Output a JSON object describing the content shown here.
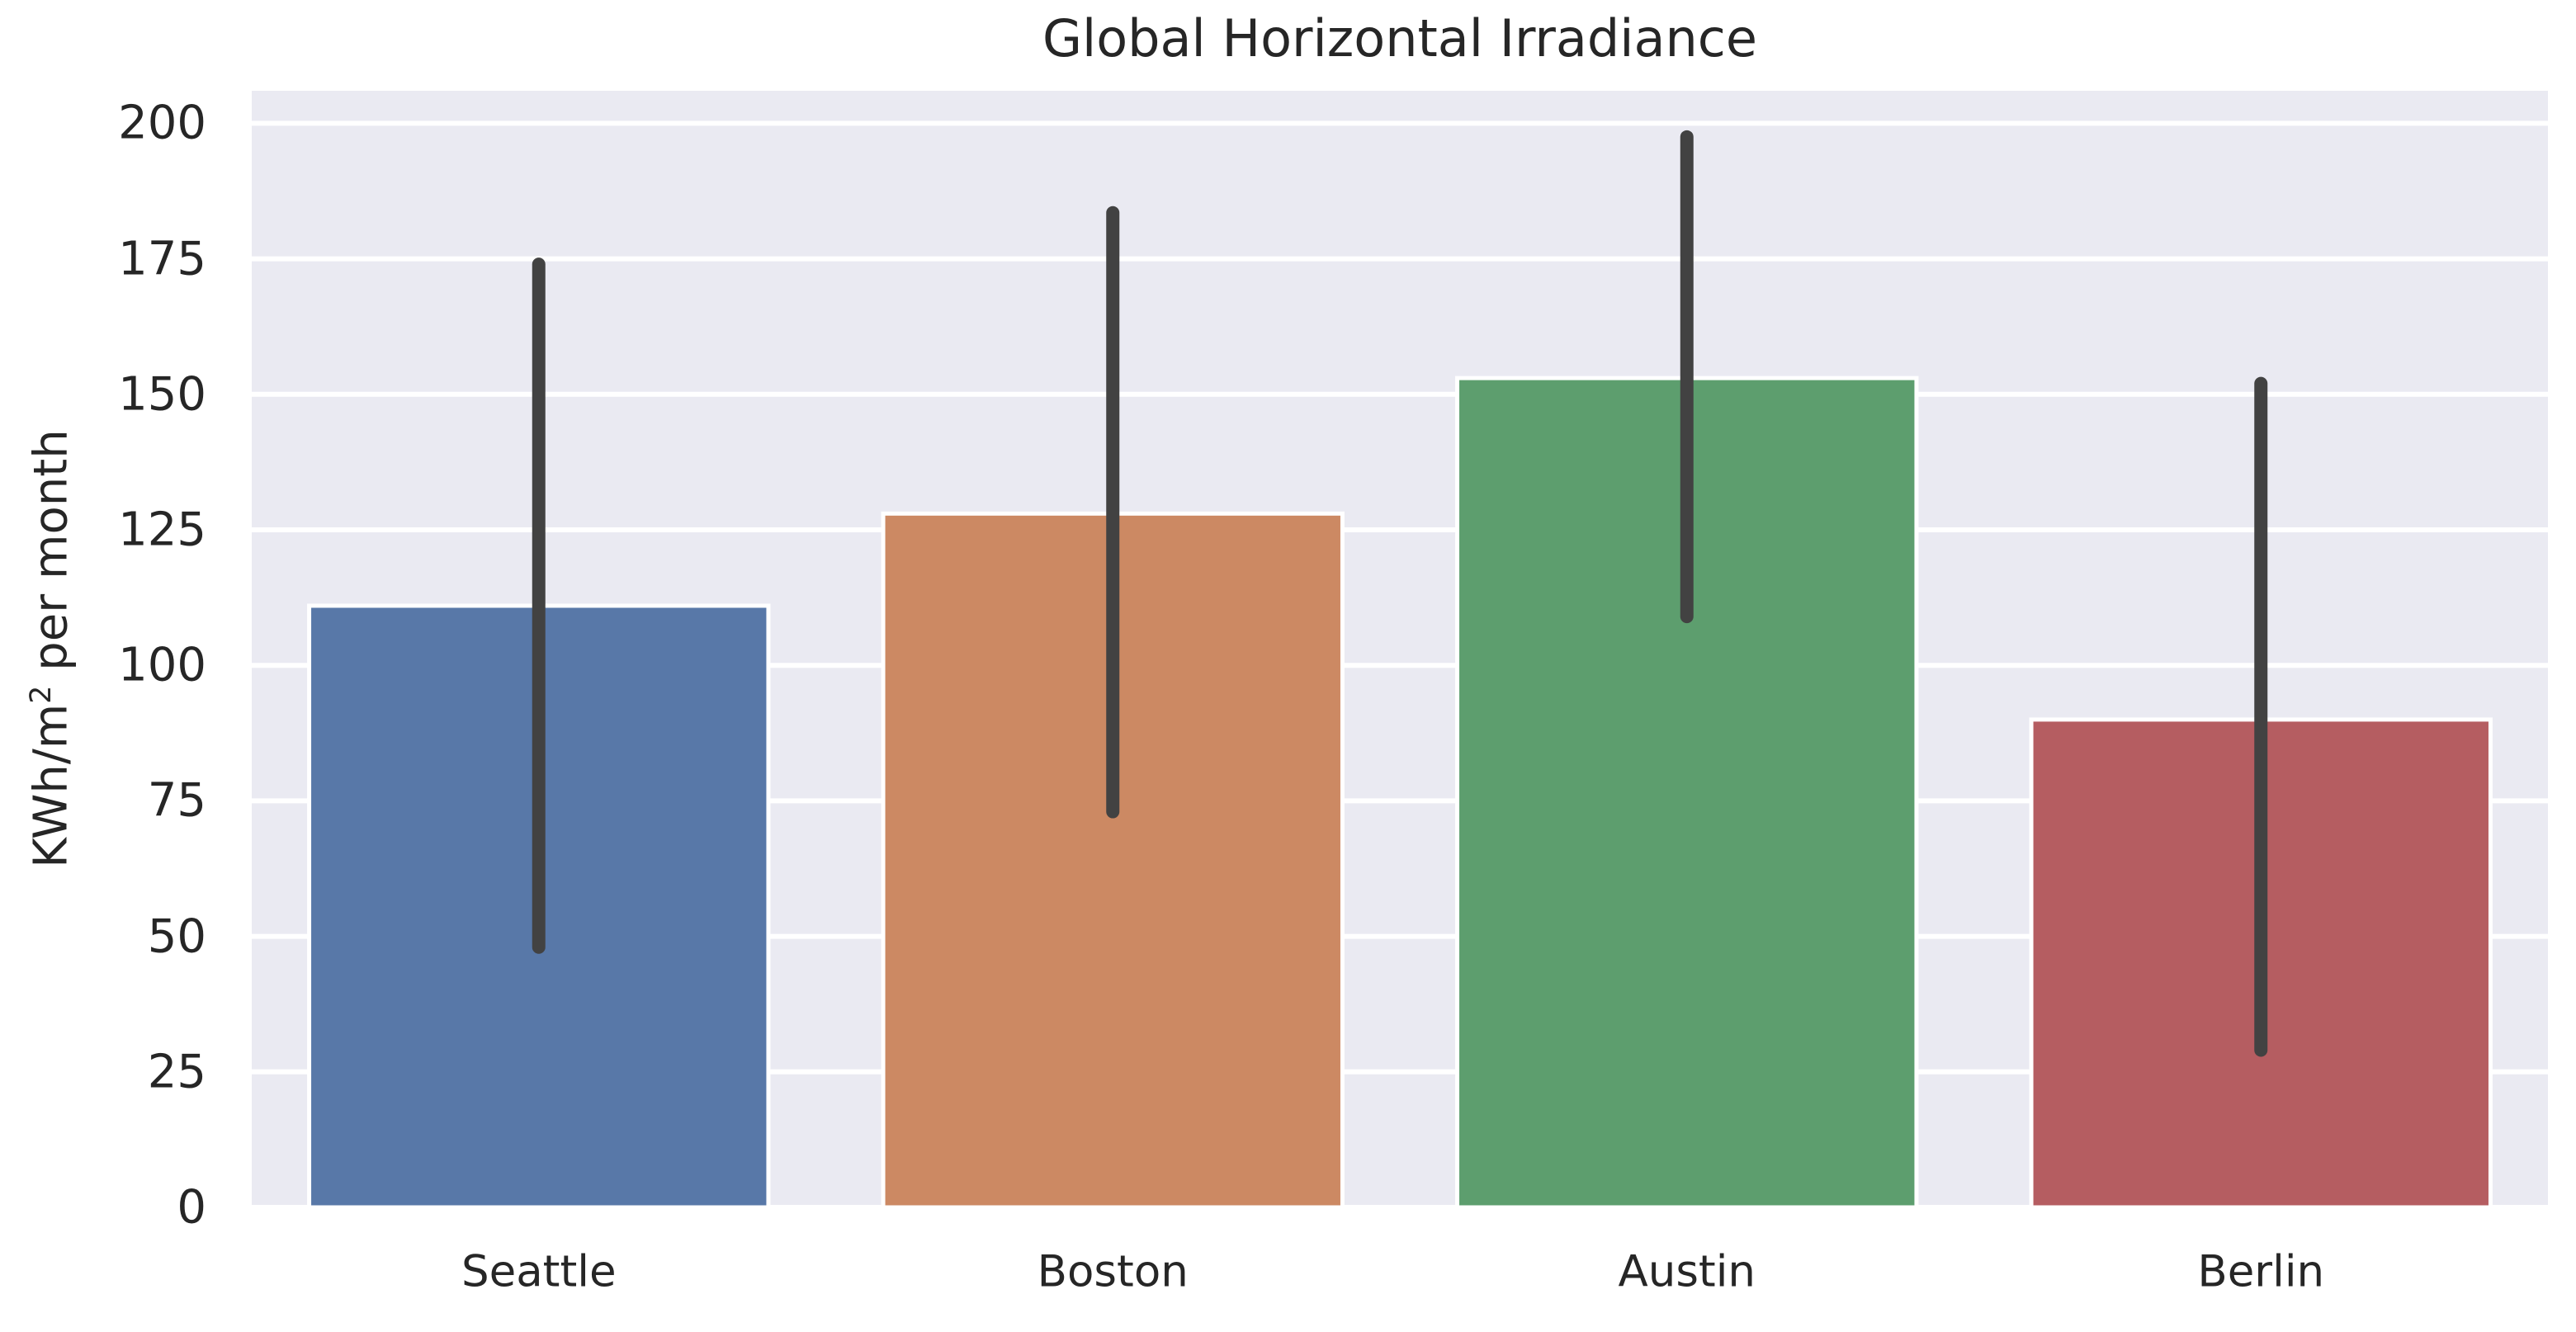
{
  "title": "Global Horizontal Irradiance",
  "y_axis": {
    "label_prefix": "KWh/m",
    "label_sup": "2",
    "label_suffix": " per month",
    "ticks": [
      0,
      25,
      50,
      75,
      100,
      125,
      150,
      175,
      200
    ]
  },
  "chart_data": {
    "type": "bar",
    "title": "Global Horizontal Irradiance",
    "xlabel": "",
    "ylabel": "KWh/m2 per month",
    "categories": [
      "Seattle",
      "Boston",
      "Austin",
      "Berlin"
    ],
    "values": [
      111,
      128,
      153,
      90
    ],
    "error_low": [
      48,
      73,
      109,
      29
    ],
    "error_high": [
      174,
      183.5,
      197.5,
      152
    ],
    "ylim": [
      0,
      206
    ],
    "ytick_step": 25,
    "grid": "horizontal white gridlines on",
    "legend_position": "none",
    "bar_colors": [
      "#5878a8",
      "#cc8963",
      "#5d9e6e",
      "#b55d61"
    ],
    "bar_edge_color": "#ffffff",
    "error_bar_color": "#424242",
    "plot_background": "#eaeaf2",
    "grid_color": "#ffffff",
    "text_color": "#262626"
  }
}
